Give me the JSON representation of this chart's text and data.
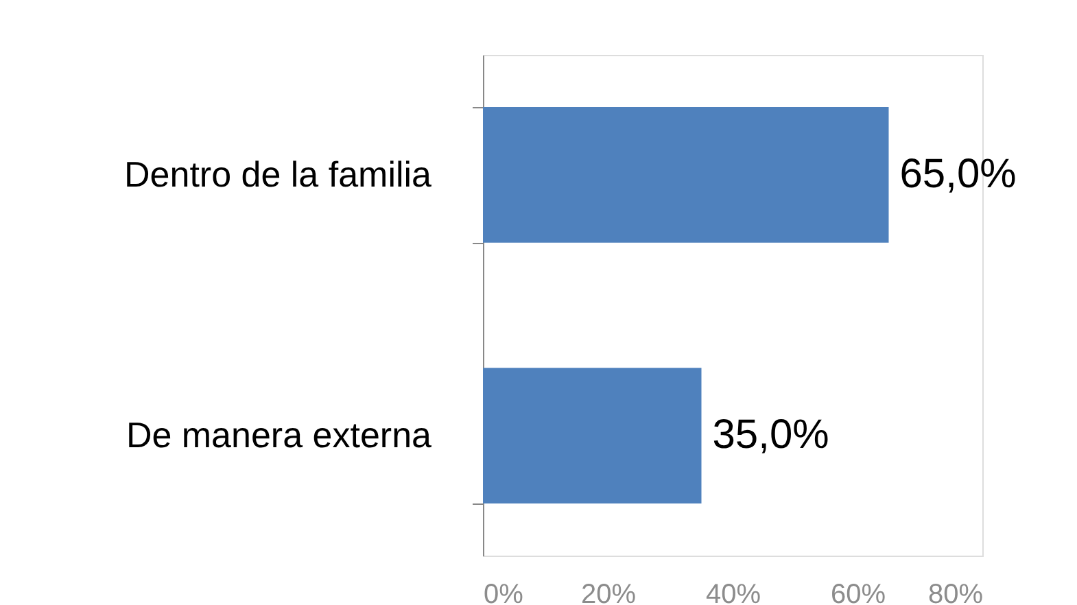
{
  "chart_data": {
    "type": "bar",
    "orientation": "horizontal",
    "categories": [
      "Dentro de la familia",
      "De manera externa"
    ],
    "values": [
      65,
      35
    ],
    "color": "#4f81bd",
    "value_labels": [
      "65,0%",
      "35,0%"
    ],
    "xlim": [
      0,
      80
    ],
    "xticks": [
      {
        "value": 0,
        "label": "0%"
      },
      {
        "value": 20,
        "label": "20%"
      },
      {
        "value": 40,
        "label": "40%"
      },
      {
        "value": 60,
        "label": "60%"
      },
      {
        "value": 80,
        "label": "80%"
      }
    ]
  }
}
